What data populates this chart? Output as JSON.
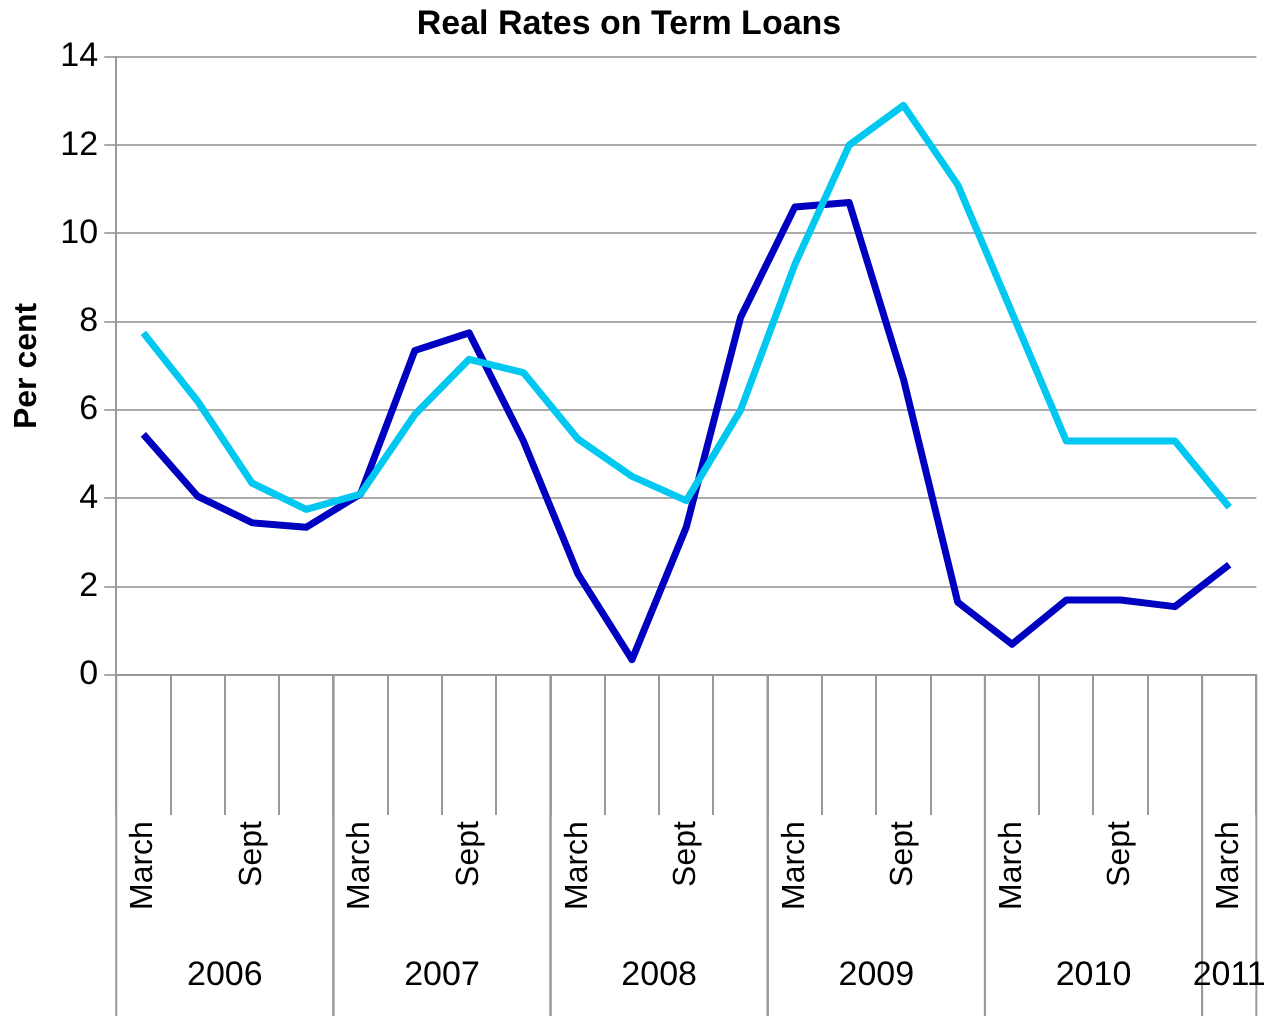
{
  "chart_data": {
    "type": "line",
    "title": "Real Rates on Term Loans",
    "ylabel": "Per cent",
    "categories": [
      "March",
      null,
      "Sept",
      null,
      "March",
      null,
      "Sept",
      null,
      "March",
      null,
      "Sept",
      null,
      "March",
      null,
      "Sept",
      null,
      "March",
      null,
      "Sept",
      null,
      "March"
    ],
    "annotations": [
      "2006",
      "2007",
      "2008",
      "2009",
      "2010",
      "2011"
    ],
    "series": [
      {
        "color": "#00c8f0",
        "values": [
          7.75,
          6.2,
          4.35,
          3.75,
          4.1,
          5.9,
          7.15,
          6.85,
          5.35,
          4.5,
          3.95,
          6.0,
          9.3,
          12.0,
          12.9,
          11.1,
          8.2,
          5.3,
          5.3,
          5.3,
          3.8
        ]
      },
      {
        "color": "#0000c0",
        "values": [
          5.45,
          4.05,
          3.45,
          3.35,
          4.1,
          7.35,
          7.75,
          5.3,
          2.3,
          0.35,
          3.35,
          8.1,
          10.6,
          10.7,
          6.7,
          1.65,
          0.7,
          1.7,
          1.7,
          1.55,
          2.5
        ]
      }
    ],
    "ylim": [
      0,
      14
    ],
    "yticks": [
      0,
      2,
      4,
      6,
      8,
      10,
      12,
      14
    ],
    "grid": "y",
    "legend": false,
    "marker": "none",
    "line_style": "solid"
  }
}
